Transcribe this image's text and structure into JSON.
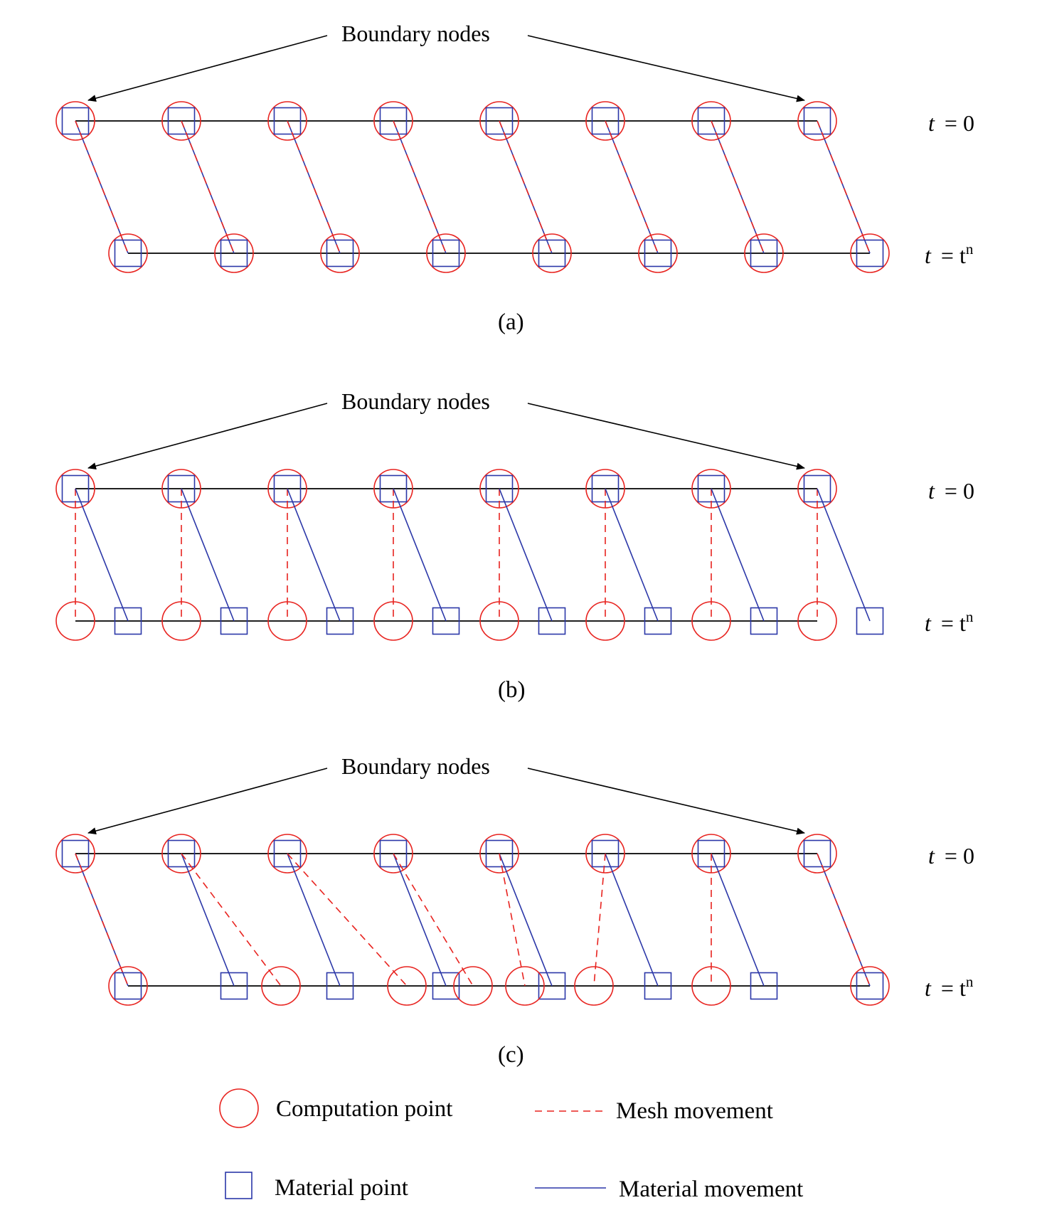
{
  "colors": {
    "computation": "#e8231f",
    "material": "#2b37a8",
    "line": "#000000"
  },
  "panels": [
    {
      "label": "(a)",
      "annotation": "Boundary nodes",
      "time_top": {
        "t": "t",
        "rel": "= 0",
        "sup": ""
      },
      "time_bottom": {
        "t": "t",
        "rel": "= t",
        "sup": "n"
      },
      "mode": "a"
    },
    {
      "label": "(b)",
      "annotation": "Boundary nodes",
      "time_top": {
        "t": "t",
        "rel": "= 0",
        "sup": ""
      },
      "time_bottom": {
        "t": "t",
        "rel": "= t",
        "sup": "n"
      },
      "mode": "b"
    },
    {
      "label": "(c)",
      "annotation": "Boundary nodes",
      "time_top": {
        "t": "t",
        "rel": "= 0",
        "sup": ""
      },
      "time_bottom": {
        "t": "t",
        "rel": "= t",
        "sup": "n"
      },
      "mode": "c"
    }
  ],
  "legend": {
    "computation_point": "Computation point",
    "material_point": "Material point",
    "mesh_movement": "Mesh movement",
    "material_movement": "Material movement"
  },
  "icons": {
    "computation_point": "red-circle",
    "material_point": "blue-square"
  }
}
